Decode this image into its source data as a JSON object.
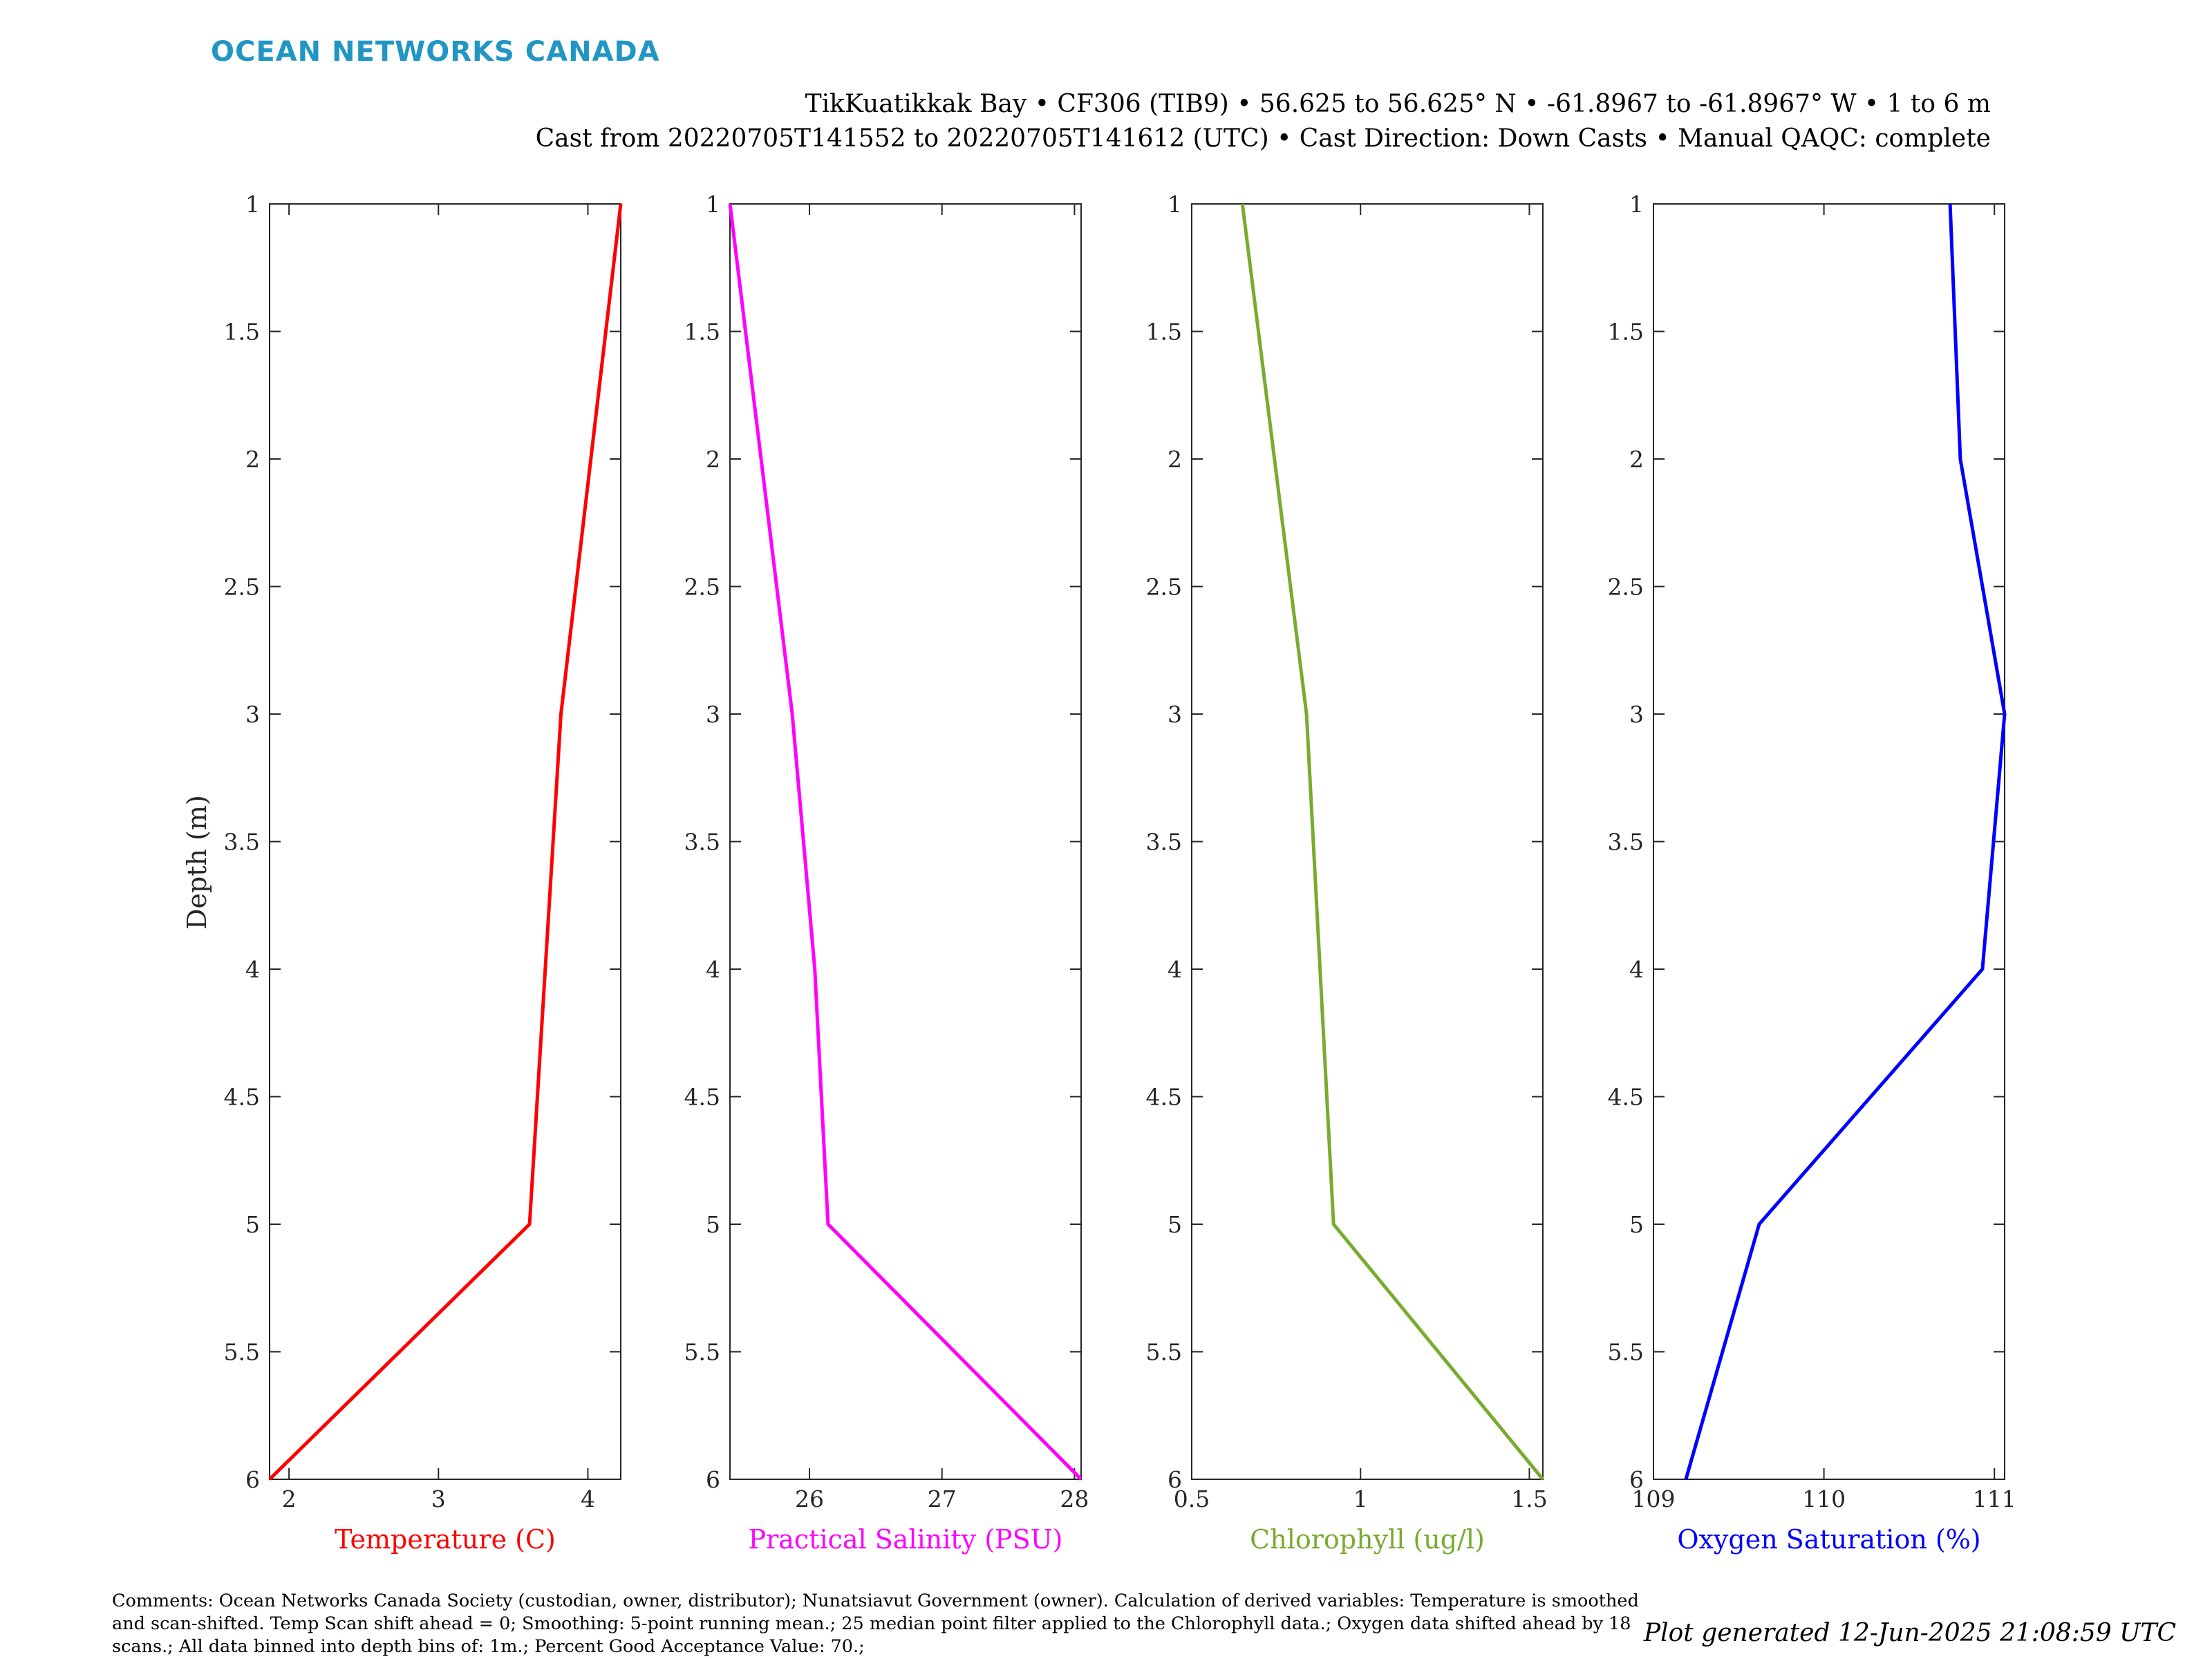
{
  "header": {
    "brand": "OCEAN NETWORKS CANADA",
    "line1": "TikKuatikkak Bay • CF306 (TIB9) • 56.625 to 56.625° N • -61.8967 to -61.8967° W • 1 to 6 m",
    "line2": "Cast from 20220705T141552 to 20220705T141612 (UTC) • Cast Direction: Down Casts • Manual QAQC: complete"
  },
  "footer": {
    "comments": "Comments: Ocean Networks Canada Society (custodian, owner, distributor); Nunatsiavut Government (owner). Calculation of derived variables: Temperature is smoothed and scan-shifted. Temp Scan shift ahead = 0; Smoothing: 5-point running mean.; 25 median point filter applied to the Chlorophyll data.; Oxygen data shifted ahead by 18 scans.; All data binned into depth bins of: 1m.; Percent Good Acceptance Value: 70.;",
    "generated": "Plot generated 12-Jun-2025 21:08:59 UTC"
  },
  "chart_data": [
    {
      "type": "line",
      "xlabel": "Temperature (C)",
      "ylabel": "Depth (m)",
      "color": "#ff0000",
      "xlim": [
        1.87,
        4.22
      ],
      "ylim": [
        1,
        6
      ],
      "y_reversed": true,
      "xticks": [
        2,
        3,
        4
      ],
      "yticks": [
        1,
        1.5,
        2,
        2.5,
        3,
        3.5,
        4,
        4.5,
        5,
        5.5,
        6
      ],
      "x": [
        4.22,
        3.82,
        3.61,
        1.87
      ],
      "y": [
        1,
        3,
        5,
        6
      ]
    },
    {
      "type": "line",
      "xlabel": "Practical Salinity (PSU)",
      "ylabel": "",
      "color": "#ff00ff",
      "xlim": [
        25.4,
        28.05
      ],
      "ylim": [
        1,
        6
      ],
      "y_reversed": true,
      "xticks": [
        26,
        27,
        28
      ],
      "yticks": [
        1,
        1.5,
        2,
        2.5,
        3,
        3.5,
        4,
        4.5,
        5,
        5.5,
        6
      ],
      "x": [
        25.4,
        25.87,
        26.04,
        26.14,
        28.05
      ],
      "y": [
        1,
        3,
        4,
        5,
        6
      ]
    },
    {
      "type": "line",
      "xlabel": "Chlorophyll (ug/l)",
      "ylabel": "",
      "color": "#77ac30",
      "xlim": [
        0.5,
        1.54
      ],
      "ylim": [
        1,
        6
      ],
      "y_reversed": true,
      "xticks": [
        0.5,
        1,
        1.5
      ],
      "yticks": [
        1,
        1.5,
        2,
        2.5,
        3,
        3.5,
        4,
        4.5,
        5,
        5.5,
        6
      ],
      "x": [
        0.65,
        0.84,
        0.92,
        1.54
      ],
      "y": [
        1,
        3,
        5,
        6
      ]
    },
    {
      "type": "line",
      "xlabel": "Oxygen Saturation (%)",
      "ylabel": "",
      "color": "#0000ff",
      "xlim": [
        109,
        111.06
      ],
      "ylim": [
        1,
        6
      ],
      "y_reversed": true,
      "xticks": [
        109,
        110,
        111
      ],
      "yticks": [
        1,
        1.5,
        2,
        2.5,
        3,
        3.5,
        4,
        4.5,
        5,
        5.5,
        6
      ],
      "x": [
        110.74,
        110.8,
        111.06,
        110.93,
        109.62,
        109.19
      ],
      "y": [
        1,
        2,
        3,
        4,
        5,
        6
      ]
    }
  ]
}
